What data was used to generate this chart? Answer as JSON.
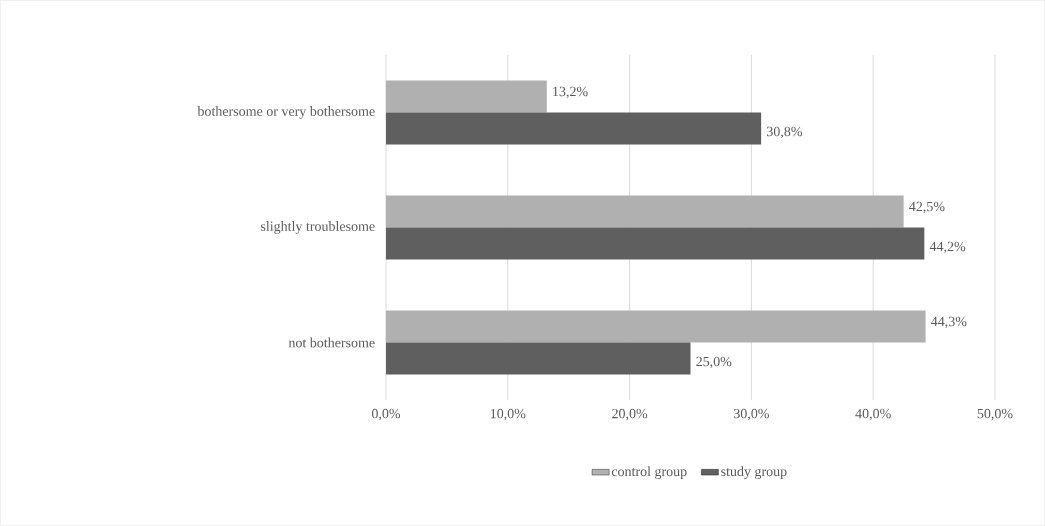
{
  "chart_data": {
    "type": "bar",
    "orientation": "horizontal",
    "categories": [
      "bothersome or very bothersome",
      "slightly troublesome",
      "not bothersome"
    ],
    "series": [
      {
        "name": "control group",
        "color": "#b0b0b0",
        "values": [
          13.2,
          42.5,
          44.3
        ],
        "value_labels": [
          "13,2%",
          "42,5%",
          "44,3%"
        ]
      },
      {
        "name": "study group",
        "color": "#5f5f5f",
        "values": [
          30.8,
          44.2,
          25.0
        ],
        "value_labels": [
          "30,8%",
          "44,2%",
          "25,0%"
        ]
      }
    ],
    "xlim": [
      0,
      50
    ],
    "xticks": [
      {
        "value": 0,
        "label": "0,0%"
      },
      {
        "value": 10,
        "label": "10,0%"
      },
      {
        "value": 20,
        "label": "20,0%"
      },
      {
        "value": 30,
        "label": "30,0%"
      },
      {
        "value": 40,
        "label": "40,0%"
      },
      {
        "value": 50,
        "label": "50,0%"
      }
    ],
    "grid": "x",
    "legend": "bottom"
  }
}
